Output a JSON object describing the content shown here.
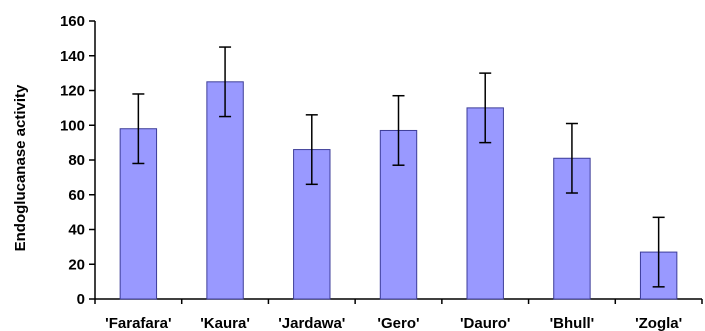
{
  "chart_data": {
    "type": "bar",
    "categories": [
      "'Farafara'",
      "'Kaura'",
      "'Jardawa'",
      "'Gero'",
      "'Dauro'",
      "'Bhull'",
      "'Zogla'"
    ],
    "values": [
      98,
      125,
      86,
      97,
      110,
      81,
      27
    ],
    "error": [
      20,
      20,
      20,
      20,
      20,
      20,
      20
    ],
    "title": "",
    "xlabel": "",
    "ylabel": "Endoglucanase activity",
    "ylim": [
      0,
      160
    ],
    "yticks": [
      0,
      20,
      40,
      60,
      80,
      100,
      120,
      140,
      160
    ],
    "grid": false,
    "legend": "none",
    "colors": {
      "bar_fill": "#9999ff",
      "bar_stroke": "#3d3d99",
      "axis": "#000000",
      "text": "#000000"
    }
  }
}
